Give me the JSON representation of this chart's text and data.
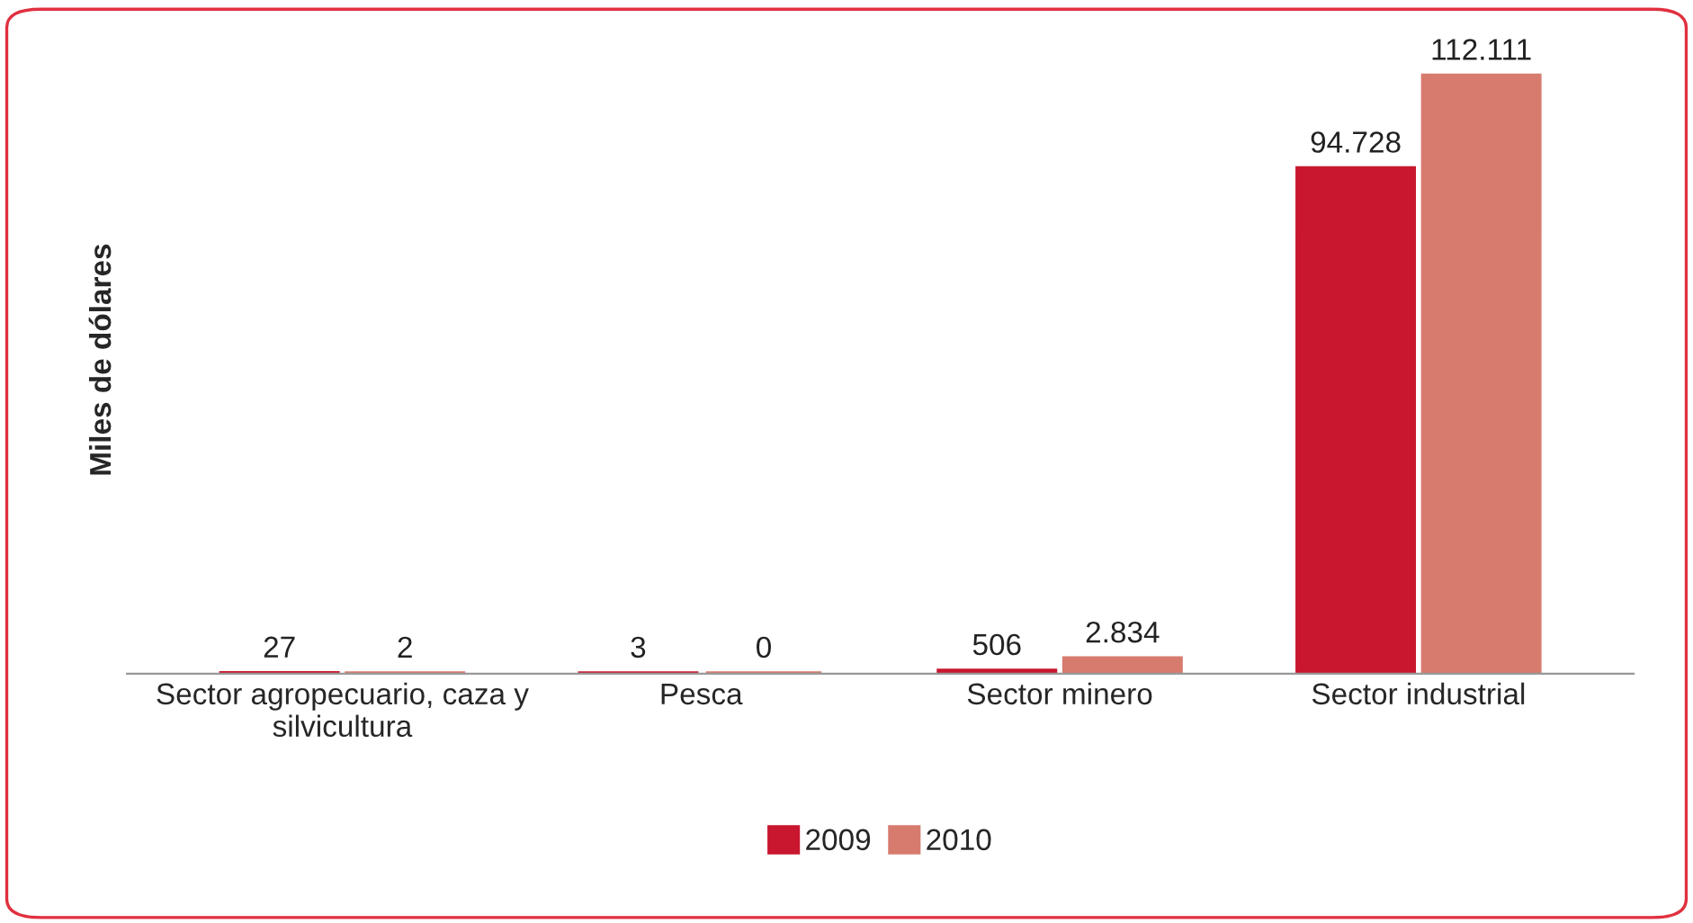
{
  "chart_data": {
    "type": "bar",
    "ylabel": "Miles de dólares",
    "categories": [
      "Sector agropecuario, caza y\nsilvicultura",
      "Pesca",
      "Sector minero",
      "Sector industrial"
    ],
    "series": [
      {
        "name": "2009",
        "color": "#c8172f",
        "values": [
          27,
          3,
          506,
          94728
        ],
        "value_labels": [
          "27",
          "3",
          "506",
          "94.728"
        ]
      },
      {
        "name": "2010",
        "color": "#d77b6e",
        "values": [
          2,
          0,
          2834,
          112111
        ],
        "value_labels": [
          "2",
          "0",
          "2.834",
          "112.111"
        ]
      }
    ],
    "tick_labels": "x",
    "grid": false,
    "legend": "bottom"
  }
}
